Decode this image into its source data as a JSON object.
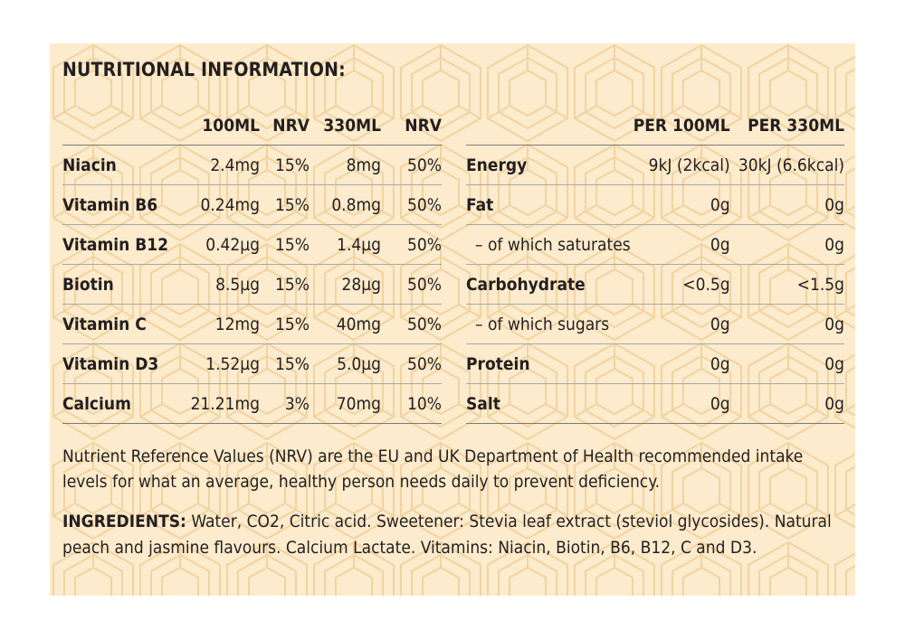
{
  "title": "NUTRITIONAL INFORMATION:",
  "vitamins": {
    "headers": [
      "",
      "100ML",
      "NRV",
      "330ML",
      "NRV"
    ],
    "rows": [
      {
        "name": "Niacin",
        "v100": "2.4mg",
        "nrv100": "15%",
        "v330": "8mg",
        "nrv330": "50%"
      },
      {
        "name": "Vitamin B6",
        "v100": "0.24mg",
        "nrv100": "15%",
        "v330": "0.8mg",
        "nrv330": "50%"
      },
      {
        "name": "Vitamin B12",
        "v100": "0.42µg",
        "nrv100": "15%",
        "v330": "1.4µg",
        "nrv330": "50%"
      },
      {
        "name": "Biotin",
        "v100": "8.5µg",
        "nrv100": "15%",
        "v330": "28µg",
        "nrv330": "50%"
      },
      {
        "name": "Vitamin C",
        "v100": "12mg",
        "nrv100": "15%",
        "v330": "40mg",
        "nrv330": "50%"
      },
      {
        "name": "Vitamin D3",
        "v100": "1.52µg",
        "nrv100": "15%",
        "v330": "5.0µg",
        "nrv330": "50%"
      },
      {
        "name": "Calcium",
        "v100": "21.21mg",
        "nrv100": "3%",
        "v330": "70mg",
        "nrv330": "10%"
      }
    ]
  },
  "nutrition": {
    "headers": [
      "",
      "PER 100ML",
      "PER 330ML"
    ],
    "rows": [
      {
        "name": "Energy",
        "p100": "9kJ (2kcal)",
        "p330": "30kJ (6.6kcal)",
        "sub": false
      },
      {
        "name": "Fat",
        "p100": "0g",
        "p330": "0g",
        "sub": false
      },
      {
        "name": "– of which saturates",
        "p100": "0g",
        "p330": "0g",
        "sub": true
      },
      {
        "name": "Carbohydrate",
        "p100": "<0.5g",
        "p330": "<1.5g",
        "sub": false
      },
      {
        "name": "– of which sugars",
        "p100": "0g",
        "p330": "0g",
        "sub": true
      },
      {
        "name": "Protein",
        "p100": "0g",
        "p330": "0g",
        "sub": false
      },
      {
        "name": "Salt",
        "p100": "0g",
        "p330": "0g",
        "sub": false
      }
    ]
  },
  "nrv_note": "Nutrient Reference Values (NRV) are the EU and UK Department of Health recommended intake levels for what an average, healthy person needs daily to prevent deficiency.",
  "ingredients": {
    "label": "INGREDIENTS:",
    "text": " Water, CO2, Citric acid. Sweetener: Stevia leaf extract (steviol glycosides). Natural peach and jasmine flavours. Calcium Lactate. Vitamins: Niacin, Biotin, B6, B12, C and D3."
  },
  "colors": {
    "background": "#fcebcc",
    "pattern": "#f3d6a6",
    "text": "#231f20"
  }
}
